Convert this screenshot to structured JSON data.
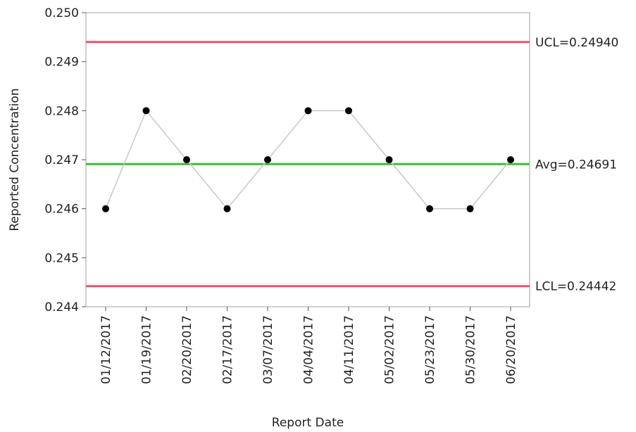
{
  "chart_data": {
    "type": "line",
    "title": "",
    "xlabel": "Report Date",
    "ylabel": "Reported Concentration",
    "categories": [
      "01/12/2017",
      "01/19/2017",
      "02/20/2017",
      "02/17/2017",
      "03/07/2017",
      "04/04/2017",
      "04/11/2017",
      "05/02/2017",
      "05/23/2017",
      "05/30/2017",
      "06/20/2017"
    ],
    "series": [
      {
        "values": [
          0.246,
          0.248,
          0.247,
          0.246,
          0.247,
          0.248,
          0.248,
          0.247,
          0.246,
          0.246,
          0.247
        ]
      }
    ],
    "ylim": [
      0.244,
      0.25
    ],
    "yticks": [
      "0.244",
      "0.245",
      "0.246",
      "0.247",
      "0.248",
      "0.249",
      "0.250"
    ],
    "grid": false,
    "reference_lines": [
      {
        "name": "UCL",
        "value": 0.2494,
        "label": "UCL=0.24940",
        "color": "#f0506e"
      },
      {
        "name": "Avg",
        "value": 0.24691,
        "label": "Avg=0.24691",
        "color": "#33c233"
      },
      {
        "name": "LCL",
        "value": 0.24442,
        "label": "LCL=0.24442",
        "color": "#f0506e"
      }
    ],
    "colors": {
      "line": "#c8c8c8",
      "marker": "#000000",
      "frame": "#a0a0a0"
    }
  }
}
